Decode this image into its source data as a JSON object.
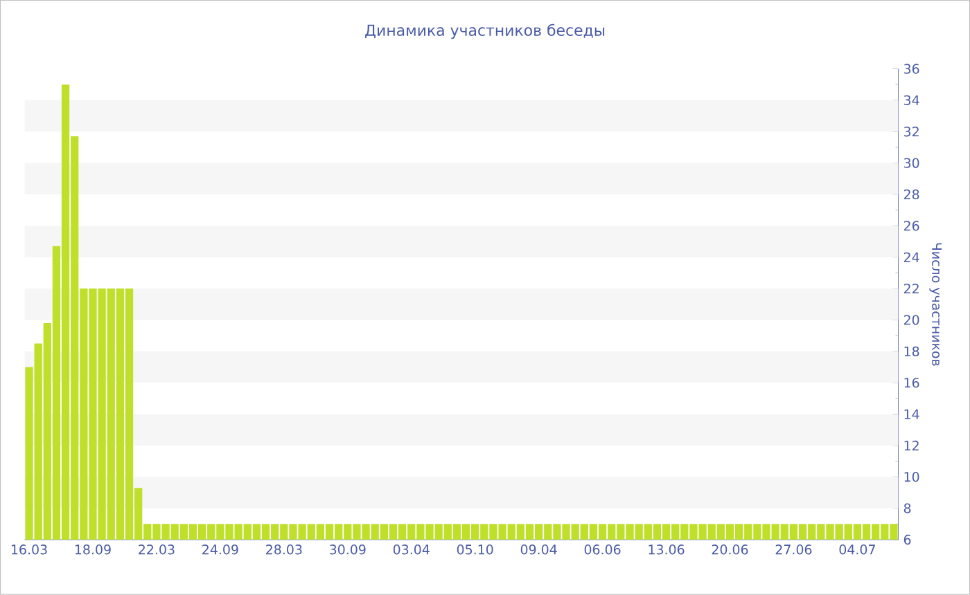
{
  "chart_data": {
    "type": "bar",
    "title": "Динамика участников беседы",
    "ylabel": "Число участников",
    "categories": [
      "16.03",
      null,
      null,
      null,
      null,
      null,
      null,
      "18.09",
      null,
      null,
      null,
      null,
      null,
      null,
      "22.03",
      null,
      null,
      null,
      null,
      null,
      null,
      "24.09",
      null,
      null,
      null,
      null,
      null,
      null,
      "28.03",
      null,
      null,
      null,
      null,
      null,
      null,
      "30.09",
      null,
      null,
      null,
      null,
      null,
      null,
      "03.04",
      null,
      null,
      null,
      null,
      null,
      null,
      "05.10",
      null,
      null,
      null,
      null,
      null,
      null,
      "09.04",
      null,
      null,
      null,
      null,
      null,
      null,
      "06.06",
      null,
      null,
      null,
      null,
      null,
      null,
      "13.06",
      null,
      null,
      null,
      null,
      null,
      null,
      "20.06",
      null,
      null,
      null,
      null,
      null,
      null,
      "27.06",
      null,
      null,
      null,
      null,
      null,
      null,
      "04.07",
      null,
      null,
      null,
      null
    ],
    "values": [
      17,
      18.5,
      19.8,
      24.7,
      35,
      31.7,
      22,
      22,
      22,
      22,
      22,
      22,
      9.3,
      7,
      7,
      7,
      7,
      7,
      7,
      7,
      7,
      7,
      7,
      7,
      7,
      7,
      7,
      7,
      7,
      7,
      7,
      7,
      7,
      7,
      7,
      7,
      7,
      7,
      7,
      7,
      7,
      7,
      7,
      7,
      7,
      7,
      7,
      7,
      7,
      7,
      7,
      7,
      7,
      7,
      7,
      7,
      7,
      7,
      7,
      7,
      7,
      7,
      7,
      7,
      7,
      7,
      7,
      7,
      7,
      7,
      7,
      7,
      7,
      7,
      7,
      7,
      7,
      7,
      7,
      7,
      7,
      7,
      7,
      7,
      7,
      7,
      7,
      7,
      7,
      7,
      7,
      7,
      7,
      7,
      7,
      7
    ],
    "color": "#bfe02b",
    "ylim": [
      6,
      36
    ],
    "yticks": [
      6,
      8,
      10,
      12,
      14,
      16,
      18,
      20,
      22,
      24,
      26,
      28,
      30,
      32,
      34,
      36
    ],
    "bands": [
      {
        "axis": "y",
        "from": 8,
        "to": 10,
        "color": "#f6f6f6"
      },
      {
        "axis": "y",
        "from": 12,
        "to": 14,
        "color": "#f6f6f6"
      },
      {
        "axis": "y",
        "from": 16,
        "to": 18,
        "color": "#f6f6f6"
      },
      {
        "axis": "y",
        "from": 20,
        "to": 22,
        "color": "#f6f6f6"
      },
      {
        "axis": "y",
        "from": 24,
        "to": 26,
        "color": "#f6f6f6"
      },
      {
        "axis": "y",
        "from": 28,
        "to": 30,
        "color": "#f6f6f6"
      },
      {
        "axis": "y",
        "from": 32,
        "to": 34,
        "color": "#f6f6f6"
      }
    ]
  }
}
